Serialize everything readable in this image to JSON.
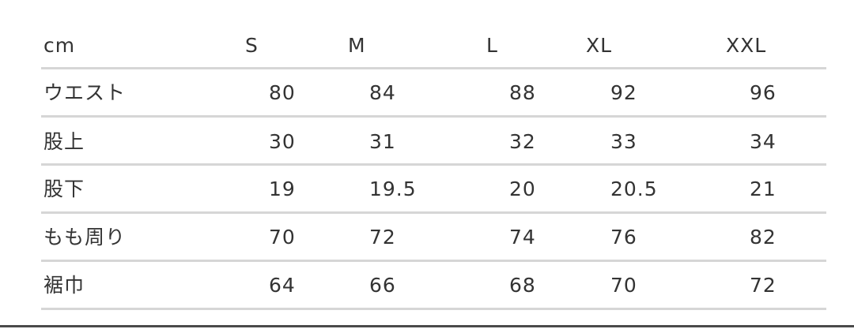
{
  "table": {
    "header": [
      "cm",
      "S",
      "M",
      "L",
      "XL",
      "XXL"
    ],
    "rows": [
      [
        "ウエスト",
        80,
        84,
        88,
        92,
        96
      ],
      [
        "股上",
        30,
        31,
        32,
        33,
        34
      ],
      [
        "股下",
        19,
        19.5,
        20,
        20.5,
        21
      ],
      [
        "もも周り",
        70,
        72,
        74,
        76,
        82
      ],
      [
        "裾巾",
        64,
        66,
        68,
        70,
        72
      ]
    ]
  }
}
